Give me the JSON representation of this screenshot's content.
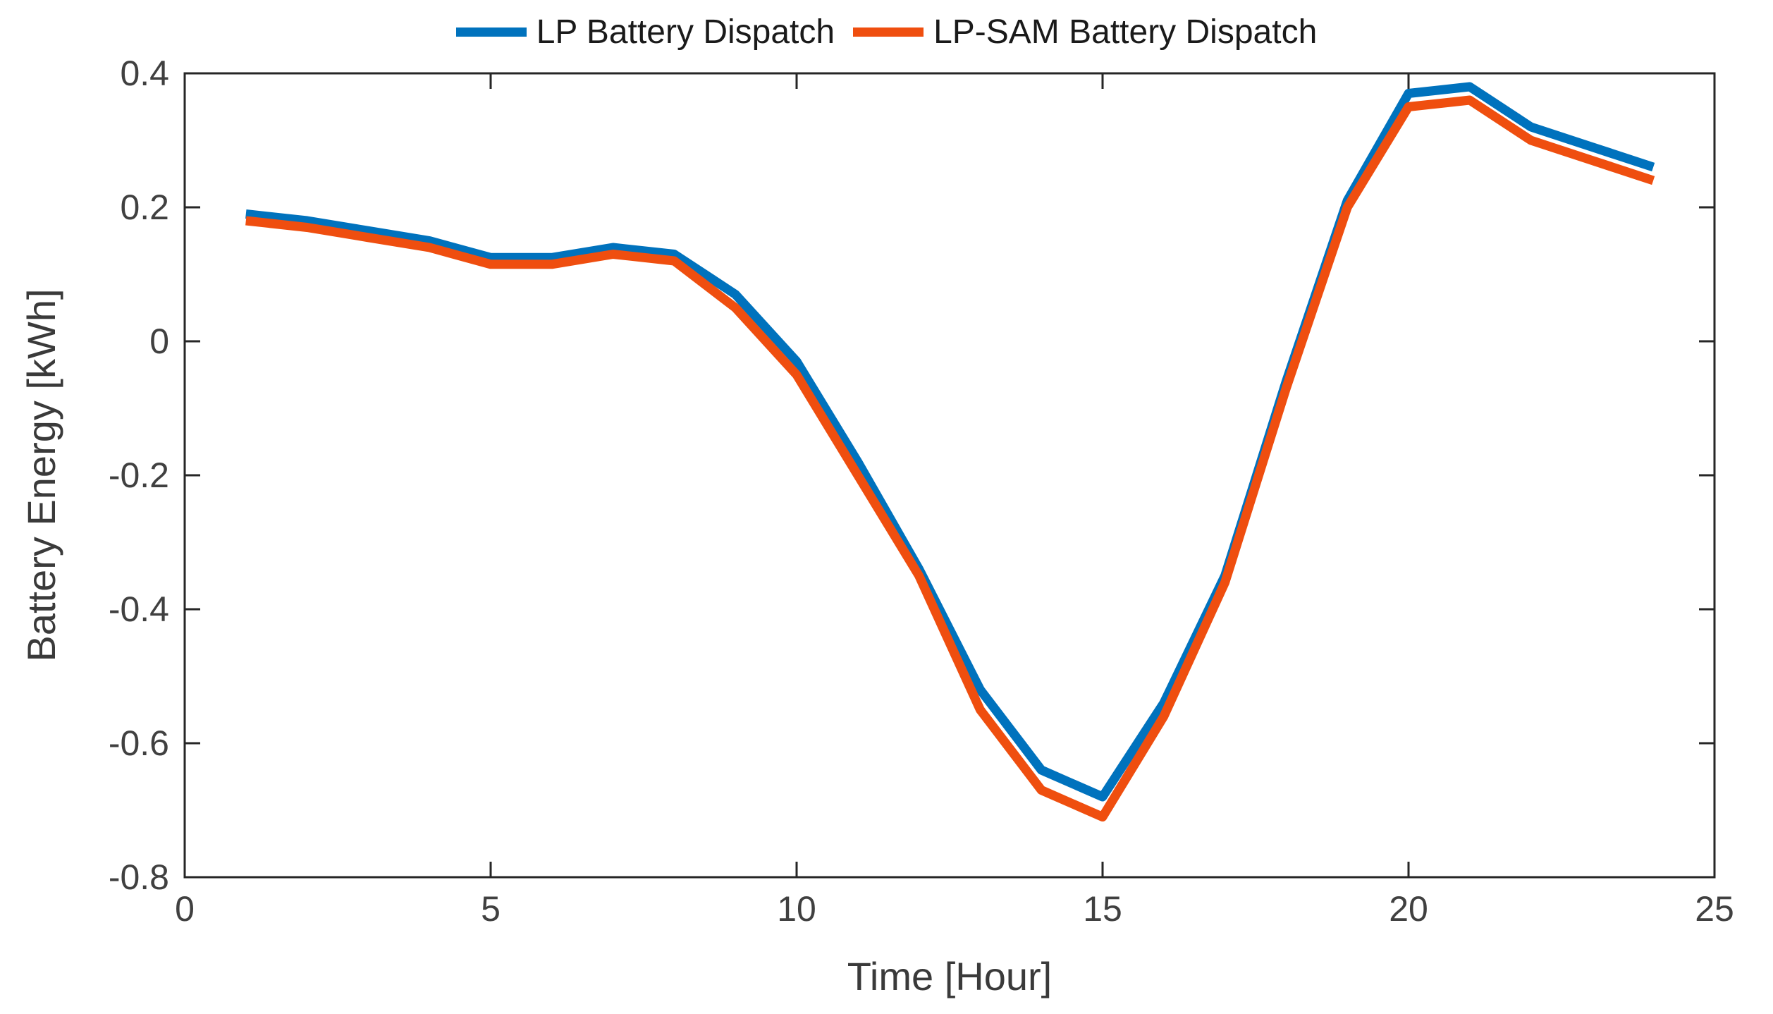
{
  "figure": {
    "background": "#ffffff",
    "axis_color": "#262626",
    "tick_label_color": "#404040"
  },
  "legend": {
    "position": "top-center",
    "items": [
      {
        "label": "LP Battery Dispatch",
        "color": "#0072BD"
      },
      {
        "label": "LP-SAM Battery Dispatch",
        "color": "#EF4E0F"
      }
    ]
  },
  "axes": {
    "xlabel": "Time [Hour]",
    "ylabel": "Battery Energy [kWh]",
    "x_tick_values": [
      0,
      5,
      10,
      15,
      20,
      25
    ],
    "x_tick_labels": [
      "0",
      "5",
      "10",
      "15",
      "20",
      "25"
    ],
    "y_tick_values": [
      0.4,
      0.2,
      0,
      -0.2,
      -0.4,
      -0.6,
      -0.8
    ],
    "y_tick_labels": [
      "0.4",
      "0.2",
      "0",
      "-0.2",
      "-0.4",
      "-0.6",
      "-0.8"
    ]
  },
  "chart_data": {
    "type": "line",
    "title": "",
    "xlabel": "Time [Hour]",
    "ylabel": "Battery Energy [kWh]",
    "xlim": [
      0,
      25
    ],
    "ylim": [
      -0.8,
      0.4
    ],
    "grid": false,
    "legend_position": "top-center",
    "x": [
      1,
      2,
      3,
      4,
      5,
      6,
      7,
      8,
      9,
      10,
      11,
      12,
      13,
      14,
      15,
      16,
      17,
      18,
      19,
      20,
      21,
      22,
      23,
      24
    ],
    "series": [
      {
        "name": "LP Battery Dispatch",
        "color": "#0072BD",
        "values": [
          0.19,
          0.18,
          0.165,
          0.15,
          0.125,
          0.125,
          0.14,
          0.13,
          0.07,
          -0.03,
          -0.18,
          -0.34,
          -0.52,
          -0.64,
          -0.68,
          -0.54,
          -0.35,
          -0.06,
          0.21,
          0.37,
          0.38,
          0.32,
          0.29,
          0.26
        ]
      },
      {
        "name": "LP-SAM Battery Dispatch",
        "color": "#EF4E0F",
        "values": [
          0.18,
          0.17,
          0.155,
          0.14,
          0.115,
          0.115,
          0.13,
          0.12,
          0.05,
          -0.05,
          -0.2,
          -0.35,
          -0.55,
          -0.67,
          -0.71,
          -0.56,
          -0.36,
          -0.07,
          0.2,
          0.35,
          0.36,
          0.3,
          0.27,
          0.24
        ]
      }
    ]
  }
}
